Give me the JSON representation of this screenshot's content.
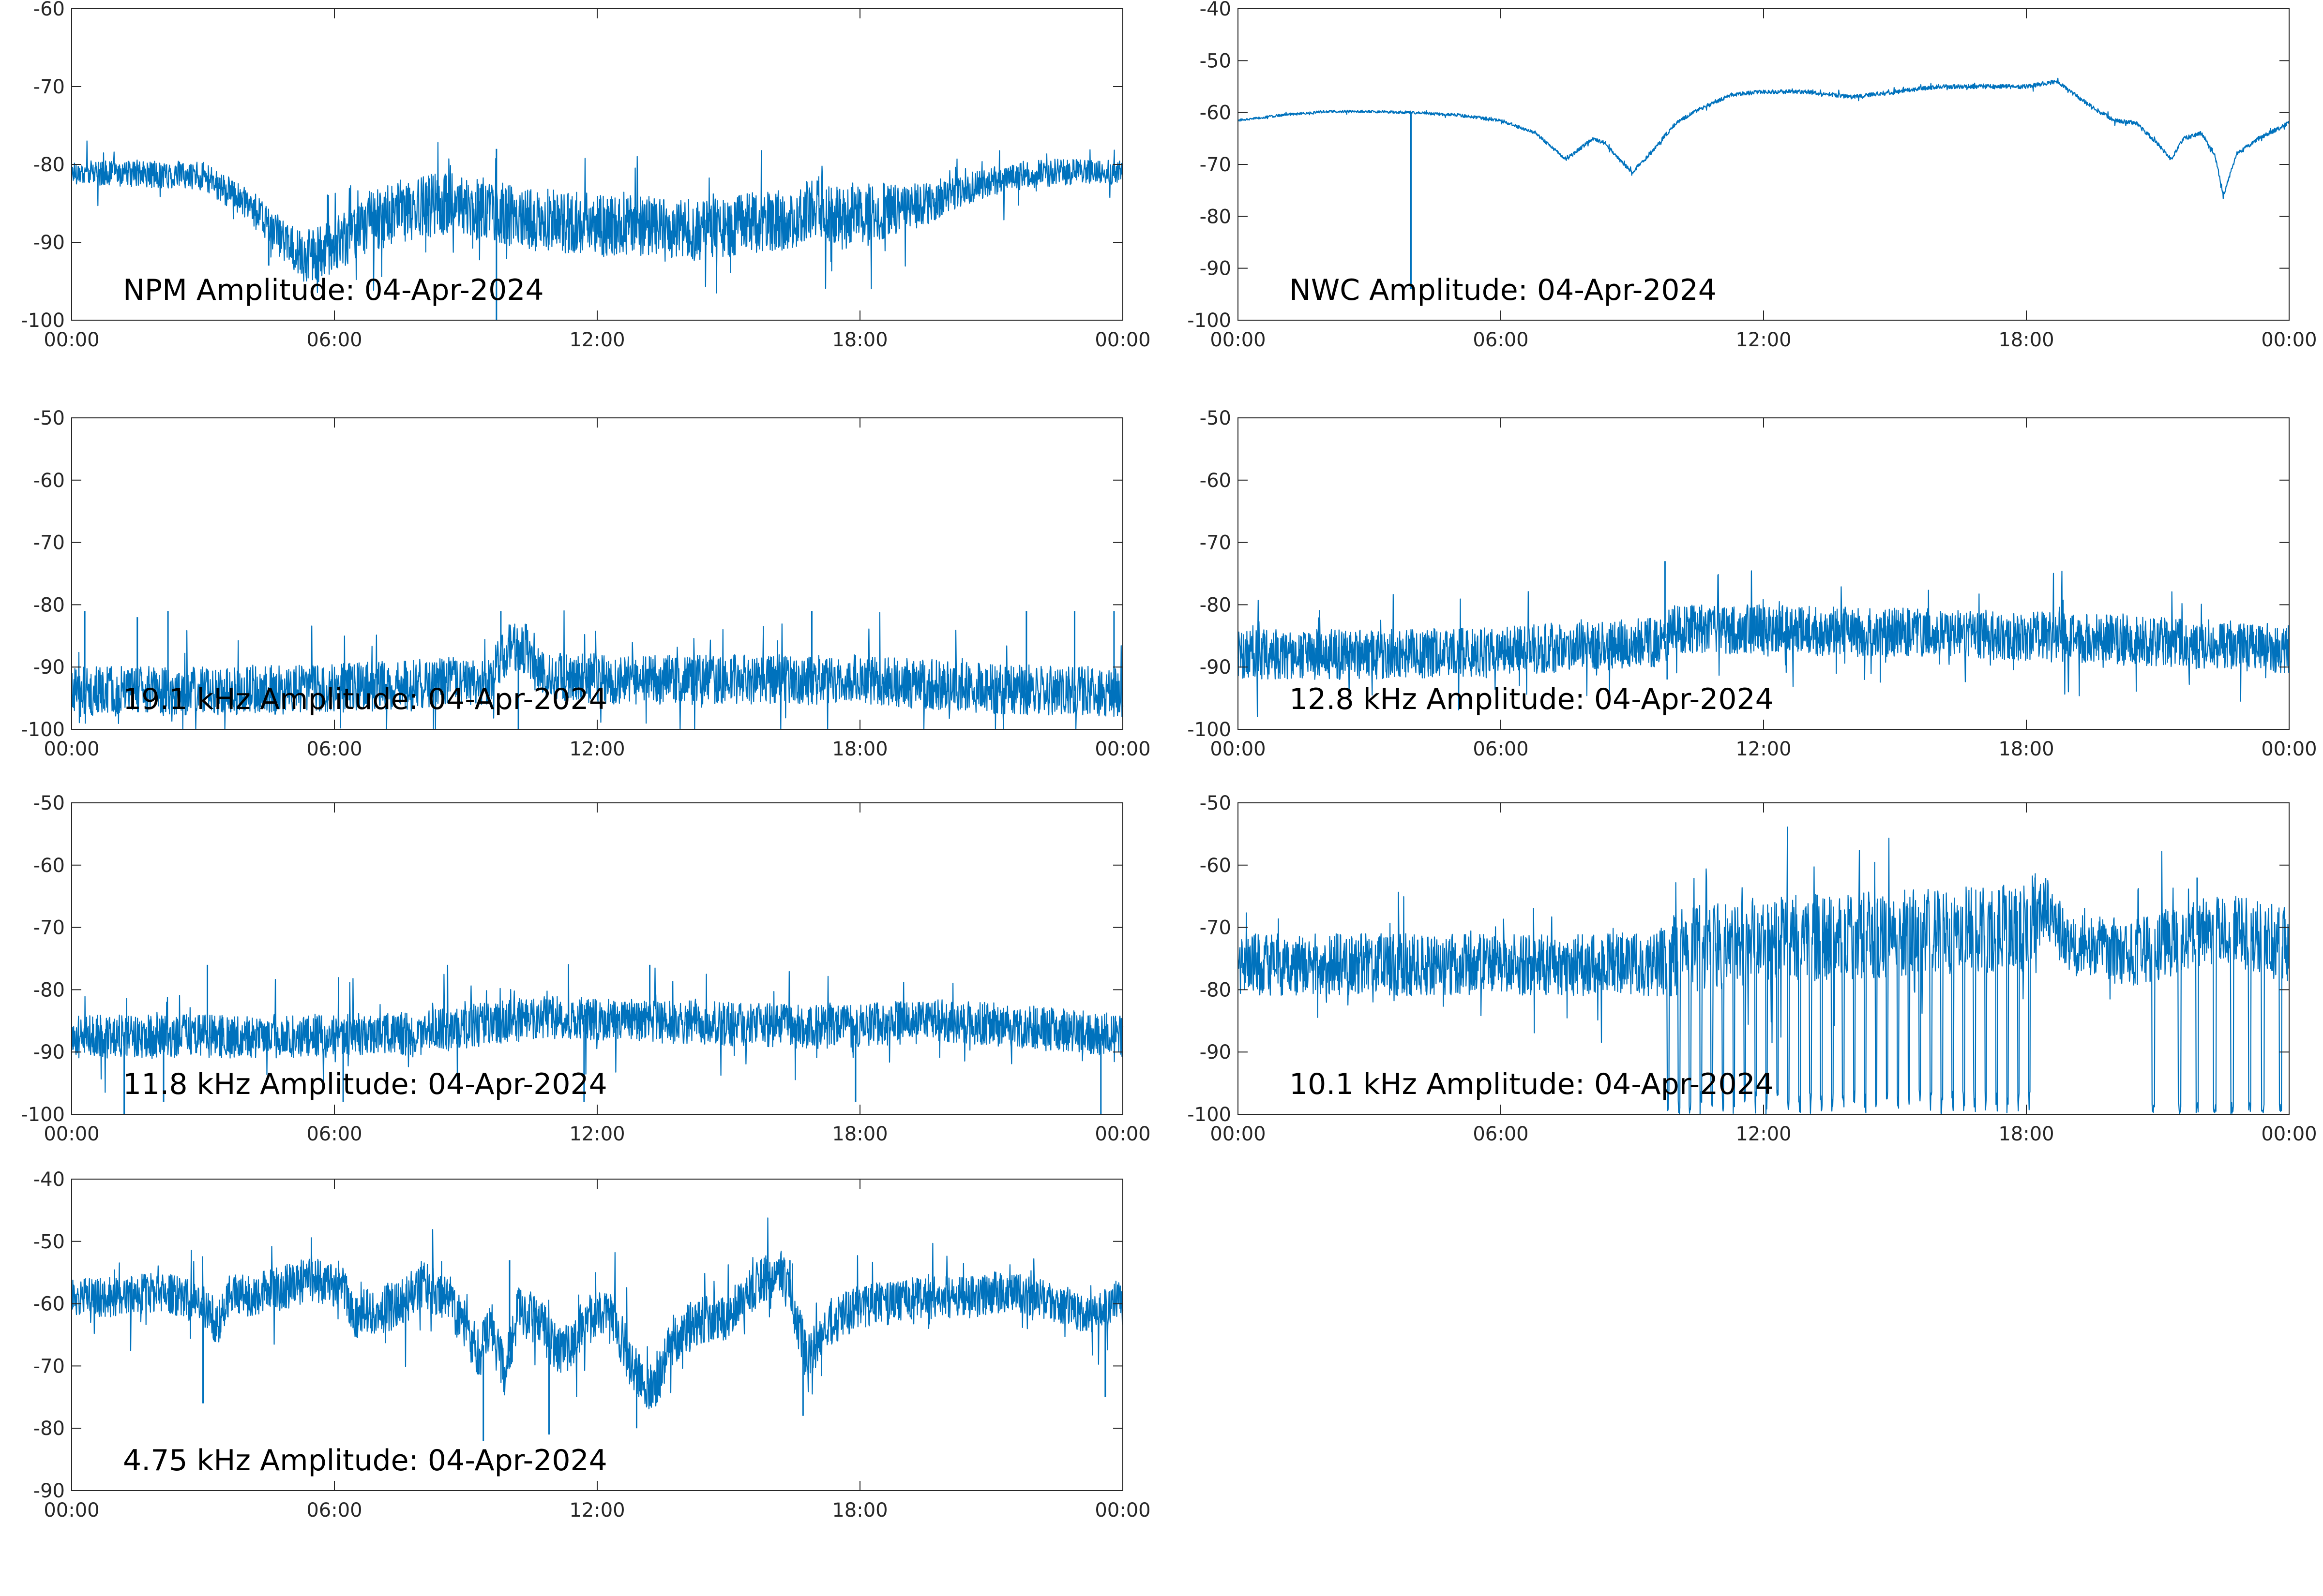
{
  "figure": {
    "line_color": "#0072BD",
    "x_tick_labels": [
      "00:00",
      "06:00",
      "12:00",
      "18:00",
      "00:00"
    ]
  },
  "chart_data": [
    {
      "type": "line",
      "title": "NPM Amplitude: 04-Apr-2024",
      "xlabel": "",
      "ylabel": "",
      "x_unit": "hours",
      "xlim": [
        0,
        24
      ],
      "ylim": [
        -100,
        -60
      ],
      "yticks": [
        -100,
        -90,
        -80,
        -70,
        -60
      ],
      "grid": false,
      "series": [
        {
          "profile": [
            [
              0,
              -81
            ],
            [
              3,
              -81.5
            ],
            [
              4,
              -85
            ],
            [
              4.7,
              -89
            ],
            [
              5.3,
              -92
            ],
            [
              5.9,
              -91
            ],
            [
              6.5,
              -88
            ],
            [
              7.5,
              -86
            ],
            [
              8.5,
              -85
            ],
            [
              9.5,
              -86
            ],
            [
              10.5,
              -87
            ],
            [
              11.5,
              -87.5
            ],
            [
              12.5,
              -88
            ],
            [
              13.5,
              -88
            ],
            [
              14.5,
              -88.5
            ],
            [
              15.5,
              -87.5
            ],
            [
              16.5,
              -87
            ],
            [
              17,
              -85
            ],
            [
              17.5,
              -87
            ],
            [
              18.5,
              -86
            ],
            [
              19.5,
              -85
            ],
            [
              20.5,
              -83
            ],
            [
              21.5,
              -81.5
            ],
            [
              22.5,
              -81
            ],
            [
              24,
              -81
            ]
          ],
          "noise": [
            [
              0,
              1.5
            ],
            [
              4,
              2
            ],
            [
              6.2,
              4
            ],
            [
              18,
              4
            ],
            [
              20.5,
              2
            ],
            [
              24,
              1.5
            ]
          ],
          "spikes": [
            [
              4.5,
              -93
            ],
            [
              9.7,
              -78
            ],
            [
              9.7,
              -100
            ]
          ]
        }
      ]
    },
    {
      "type": "line",
      "title": "NWC Amplitude: 04-Apr-2024",
      "xlabel": "",
      "ylabel": "",
      "x_unit": "hours",
      "xlim": [
        0,
        24
      ],
      "ylim": [
        -100,
        -40
      ],
      "yticks": [
        -100,
        -90,
        -80,
        -70,
        -60,
        -50,
        -40
      ],
      "grid": false,
      "series": [
        {
          "profile": [
            [
              0,
              -61.5
            ],
            [
              1,
              -60.5
            ],
            [
              2,
              -59.8
            ],
            [
              3,
              -59.8
            ],
            [
              4,
              -60
            ],
            [
              5,
              -60.5
            ],
            [
              6,
              -61.5
            ],
            [
              6.8,
              -64
            ],
            [
              7.2,
              -67
            ],
            [
              7.5,
              -69
            ],
            [
              7.8,
              -67
            ],
            [
              8.1,
              -65
            ],
            [
              8.4,
              -66
            ],
            [
              8.7,
              -69
            ],
            [
              9.0,
              -71.5
            ],
            [
              9.4,
              -68
            ],
            [
              10,
              -62
            ],
            [
              10.5,
              -59.5
            ],
            [
              11.3,
              -56.5
            ],
            [
              12,
              -56
            ],
            [
              13,
              -56
            ],
            [
              14,
              -57
            ],
            [
              15,
              -56
            ],
            [
              16,
              -55
            ],
            [
              17,
              -55
            ],
            [
              18,
              -55
            ],
            [
              18.7,
              -54
            ],
            [
              19.5,
              -59
            ],
            [
              20,
              -61.5
            ],
            [
              20.5,
              -62
            ],
            [
              21,
              -66
            ],
            [
              21.3,
              -69
            ],
            [
              21.6,
              -65
            ],
            [
              22,
              -64
            ],
            [
              22.3,
              -68
            ],
            [
              22.5,
              -76
            ],
            [
              22.8,
              -68
            ],
            [
              23.3,
              -65
            ],
            [
              24,
              -62
            ]
          ],
          "noise": [
            [
              0,
              0.2
            ],
            [
              10,
              0.4
            ],
            [
              24,
              0.4
            ]
          ],
          "spikes": [
            [
              3.95,
              -94
            ]
          ]
        }
      ]
    },
    {
      "type": "line",
      "title": "19.1 kHz Amplitude: 04-Apr-2024",
      "xlabel": "",
      "ylabel": "",
      "x_unit": "hours",
      "xlim": [
        0,
        24
      ],
      "ylim": [
        -100,
        -50
      ],
      "yticks": [
        -100,
        -90,
        -80,
        -70,
        -60,
        -50
      ],
      "grid": false,
      "series": [
        {
          "profile": [
            [
              0,
              -94
            ],
            [
              6,
              -93.5
            ],
            [
              9.5,
              -92
            ],
            [
              10,
              -87
            ],
            [
              10.4,
              -87
            ],
            [
              10.6,
              -91
            ],
            [
              12,
              -92
            ],
            [
              18,
              -92
            ],
            [
              21,
              -93.5
            ],
            [
              24,
              -94
            ]
          ],
          "noise": [
            [
              0,
              4
            ],
            [
              24,
              4
            ]
          ],
          "spikes": [
            [
              0.3,
              -81
            ],
            [
              1.5,
              -82
            ],
            [
              2.2,
              -81
            ],
            [
              9.8,
              -81
            ],
            [
              16.9,
              -81
            ],
            [
              21.8,
              -81
            ],
            [
              22.9,
              -81
            ],
            [
              23.8,
              -81
            ],
            [
              10.2,
              -100
            ]
          ]
        }
      ]
    },
    {
      "type": "line",
      "title": "12.8 kHz Amplitude: 04-Apr-2024",
      "xlabel": "",
      "ylabel": "",
      "x_unit": "hours",
      "xlim": [
        0,
        24
      ],
      "ylim": [
        -100,
        -50
      ],
      "yticks": [
        -100,
        -90,
        -80,
        -70,
        -60,
        -50
      ],
      "grid": false,
      "series": [
        {
          "profile": [
            [
              0,
              -88
            ],
            [
              3,
              -88
            ],
            [
              6,
              -87.5
            ],
            [
              9.7,
              -86
            ],
            [
              9.85,
              -84
            ],
            [
              12,
              -84
            ],
            [
              18,
              -85
            ],
            [
              24,
              -87
            ]
          ],
          "noise": [
            [
              0,
              4
            ],
            [
              24,
              4
            ]
          ],
          "spikes": [
            [
              9.75,
              -73
            ],
            [
              9.8,
              -92
            ]
          ]
        }
      ]
    },
    {
      "type": "line",
      "title": "11.8 kHz Amplitude: 04-Apr-2024",
      "xlabel": "",
      "ylabel": "",
      "x_unit": "hours",
      "xlim": [
        0,
        24
      ],
      "ylim": [
        -100,
        -50
      ],
      "yticks": [
        -100,
        -90,
        -80,
        -70,
        -60,
        -50
      ],
      "grid": false,
      "series": [
        {
          "profile": [
            [
              0,
              -87.5
            ],
            [
              5,
              -87.5
            ],
            [
              8,
              -87
            ],
            [
              10,
              -85
            ],
            [
              11,
              -84.5
            ],
            [
              13,
              -85
            ],
            [
              17,
              -86
            ],
            [
              20,
              -85
            ],
            [
              22,
              -86
            ],
            [
              24,
              -87.5
            ]
          ],
          "noise": [
            [
              0,
              3.5
            ],
            [
              24,
              3.5
            ]
          ],
          "spikes": [
            [
              1.2,
              -100
            ],
            [
              2.1,
              -98
            ],
            [
              6.2,
              -98
            ],
            [
              11.7,
              -98
            ],
            [
              17.9,
              -98
            ],
            [
              23.5,
              -100
            ],
            [
              3.1,
              -76
            ],
            [
              13.2,
              -76
            ]
          ]
        }
      ]
    },
    {
      "type": "line",
      "title": "10.1 kHz Amplitude: 04-Apr-2024",
      "xlabel": "",
      "ylabel": "",
      "x_unit": "hours",
      "xlim": [
        0,
        24
      ],
      "ylim": [
        -100,
        -50
      ],
      "yticks": [
        -100,
        -90,
        -80,
        -70,
        -60,
        -50
      ],
      "grid": false,
      "series": [
        {
          "profile": [
            [
              0,
              -76
            ],
            [
              5,
              -76
            ],
            [
              9.5,
              -76
            ],
            [
              10,
              -74
            ],
            [
              12,
              -72
            ],
            [
              15,
              -71
            ],
            [
              18,
              -70
            ],
            [
              18.4,
              -66
            ],
            [
              19,
              -73
            ],
            [
              20.5,
              -74
            ],
            [
              22.5,
              -70
            ],
            [
              24,
              -73
            ]
          ],
          "noise": [
            [
              0,
              5
            ],
            [
              9.5,
              5
            ],
            [
              10,
              7
            ],
            [
              18.3,
              7
            ],
            [
              18.5,
              5
            ],
            [
              24,
              6
            ]
          ],
          "deep_dips": {
            "start": 9.8,
            "end": 18.3,
            "interval": 0.25,
            "min": -100
          },
          "late_dips": [
            20.9,
            21.5,
            21.9,
            22.3,
            22.7,
            23.1,
            23.4,
            23.8
          ],
          "spikes": [
            [
              18.2,
              -62
            ],
            [
              21.9,
              -62
            ]
          ]
        }
      ]
    },
    {
      "type": "line",
      "title": "4.75 kHz Amplitude: 04-Apr-2024",
      "xlabel": "",
      "ylabel": "",
      "x_unit": "hours",
      "xlim": [
        0,
        24
      ],
      "ylim": [
        -90,
        -40
      ],
      "yticks": [
        -90,
        -80,
        -70,
        -60,
        -50,
        -40
      ],
      "grid": false,
      "series": [
        {
          "profile": [
            [
              0,
              -59
            ],
            [
              1,
              -59
            ],
            [
              2,
              -58
            ],
            [
              3,
              -60
            ],
            [
              3.3,
              -64
            ],
            [
              3.6,
              -59
            ],
            [
              4.5,
              -58
            ],
            [
              5.5,
              -56
            ],
            [
              6.2,
              -57
            ],
            [
              6.4,
              -62
            ],
            [
              7,
              -61
            ],
            [
              7.5,
              -60
            ],
            [
              8,
              -57
            ],
            [
              8.4,
              -58
            ],
            [
              8.9,
              -63
            ],
            [
              9.3,
              -68
            ],
            [
              9.6,
              -64
            ],
            [
              9.9,
              -71
            ],
            [
              10.2,
              -61
            ],
            [
              10.7,
              -63
            ],
            [
              11.1,
              -68
            ],
            [
              11.3,
              -67
            ],
            [
              12,
              -61
            ],
            [
              12.4,
              -63
            ],
            [
              12.8,
              -70
            ],
            [
              13.3,
              -74
            ],
            [
              13.7,
              -66
            ],
            [
              14.3,
              -63
            ],
            [
              15,
              -62
            ],
            [
              15.6,
              -57
            ],
            [
              16.2,
              -55
            ],
            [
              16.5,
              -61
            ],
            [
              16.8,
              -69
            ],
            [
              17.2,
              -64
            ],
            [
              17.8,
              -61
            ],
            [
              18.5,
              -60
            ],
            [
              19.5,
              -59
            ],
            [
              20.5,
              -59
            ],
            [
              21.5,
              -58
            ],
            [
              22.5,
              -60
            ],
            [
              23.3,
              -62
            ],
            [
              24,
              -59
            ]
          ],
          "noise": [
            [
              0,
              3
            ],
            [
              8,
              4
            ],
            [
              14,
              4
            ],
            [
              24,
              3
            ]
          ],
          "spikes": [
            [
              3.0,
              -76
            ],
            [
              9.4,
              -82
            ],
            [
              10.9,
              -81
            ],
            [
              12.9,
              -80
            ],
            [
              16.4,
              -53
            ],
            [
              16.7,
              -78
            ],
            [
              23.6,
              -75
            ],
            [
              10.0,
              -53
            ]
          ]
        }
      ]
    }
  ]
}
